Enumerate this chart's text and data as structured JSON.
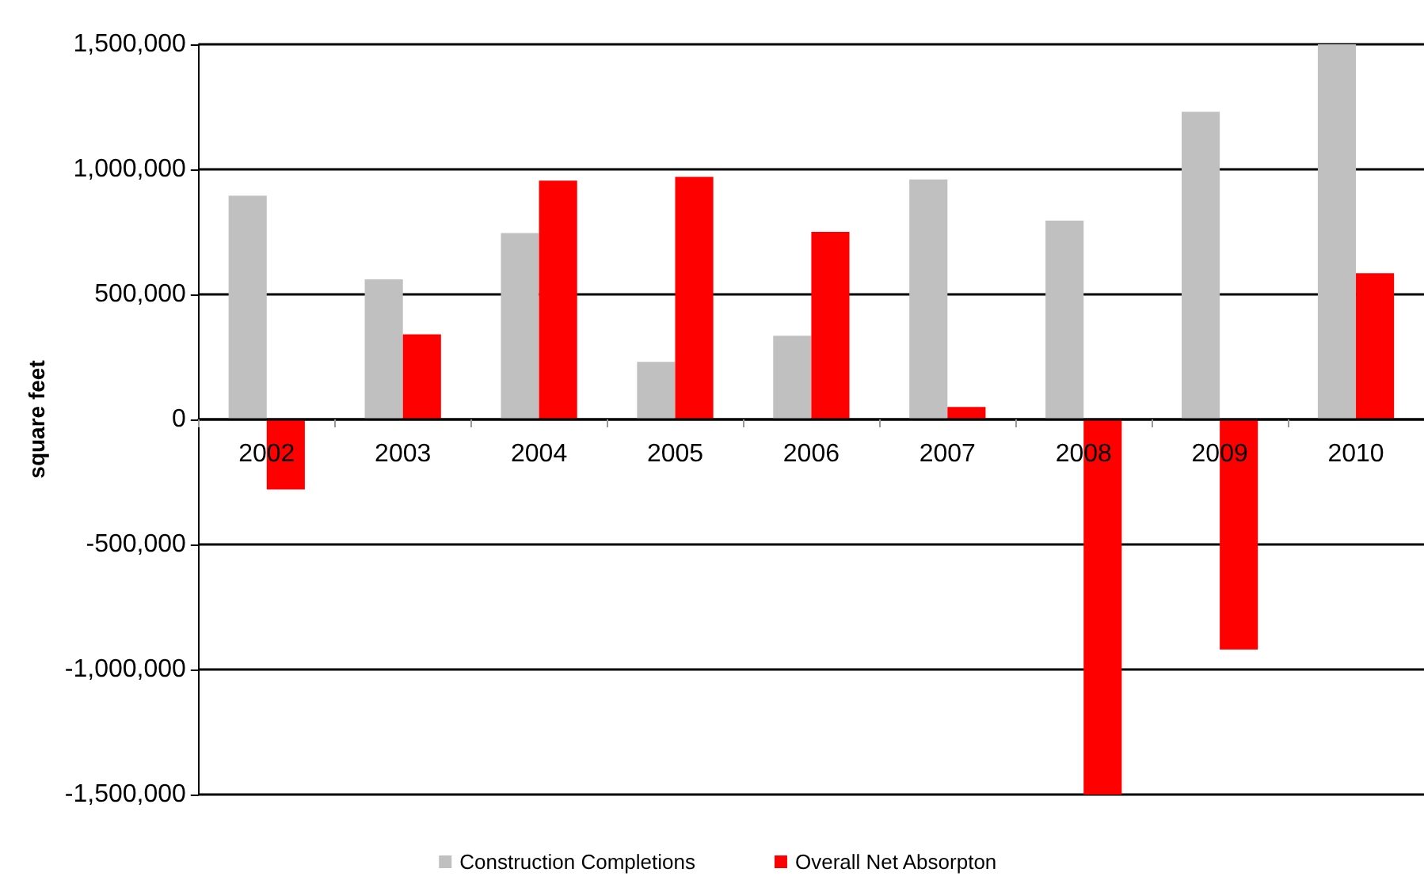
{
  "chart_data": {
    "type": "bar",
    "ylabel": "square feet",
    "categories": [
      "2002",
      "2003",
      "2004",
      "2005",
      "2006",
      "2007",
      "2008",
      "2009",
      "2010"
    ],
    "series": [
      {
        "name": "Construction Completions",
        "color": "#c0c0c0",
        "values": [
          895000,
          560000,
          745000,
          230000,
          335000,
          960000,
          795000,
          1230000,
          1500000
        ]
      },
      {
        "name": "Overall Net Absorpton",
        "color": "#ff0000",
        "values": [
          -280000,
          340000,
          955000,
          970000,
          750000,
          50000,
          -1500000,
          -920000,
          585000
        ]
      }
    ],
    "ylim": [
      -1500000,
      1500000
    ],
    "yticks": [
      {
        "value": -1500000,
        "label": "-1,500,000"
      },
      {
        "value": -1000000,
        "label": "-1,000,000"
      },
      {
        "value": -500000,
        "label": "-500,000"
      },
      0,
      {
        "value": 500000,
        "label": "500,000"
      },
      {
        "value": 1000000,
        "label": "1,000,000"
      },
      {
        "value": 1500000,
        "label": "1,500,000"
      }
    ],
    "grid": "y",
    "legend": "bottom"
  }
}
